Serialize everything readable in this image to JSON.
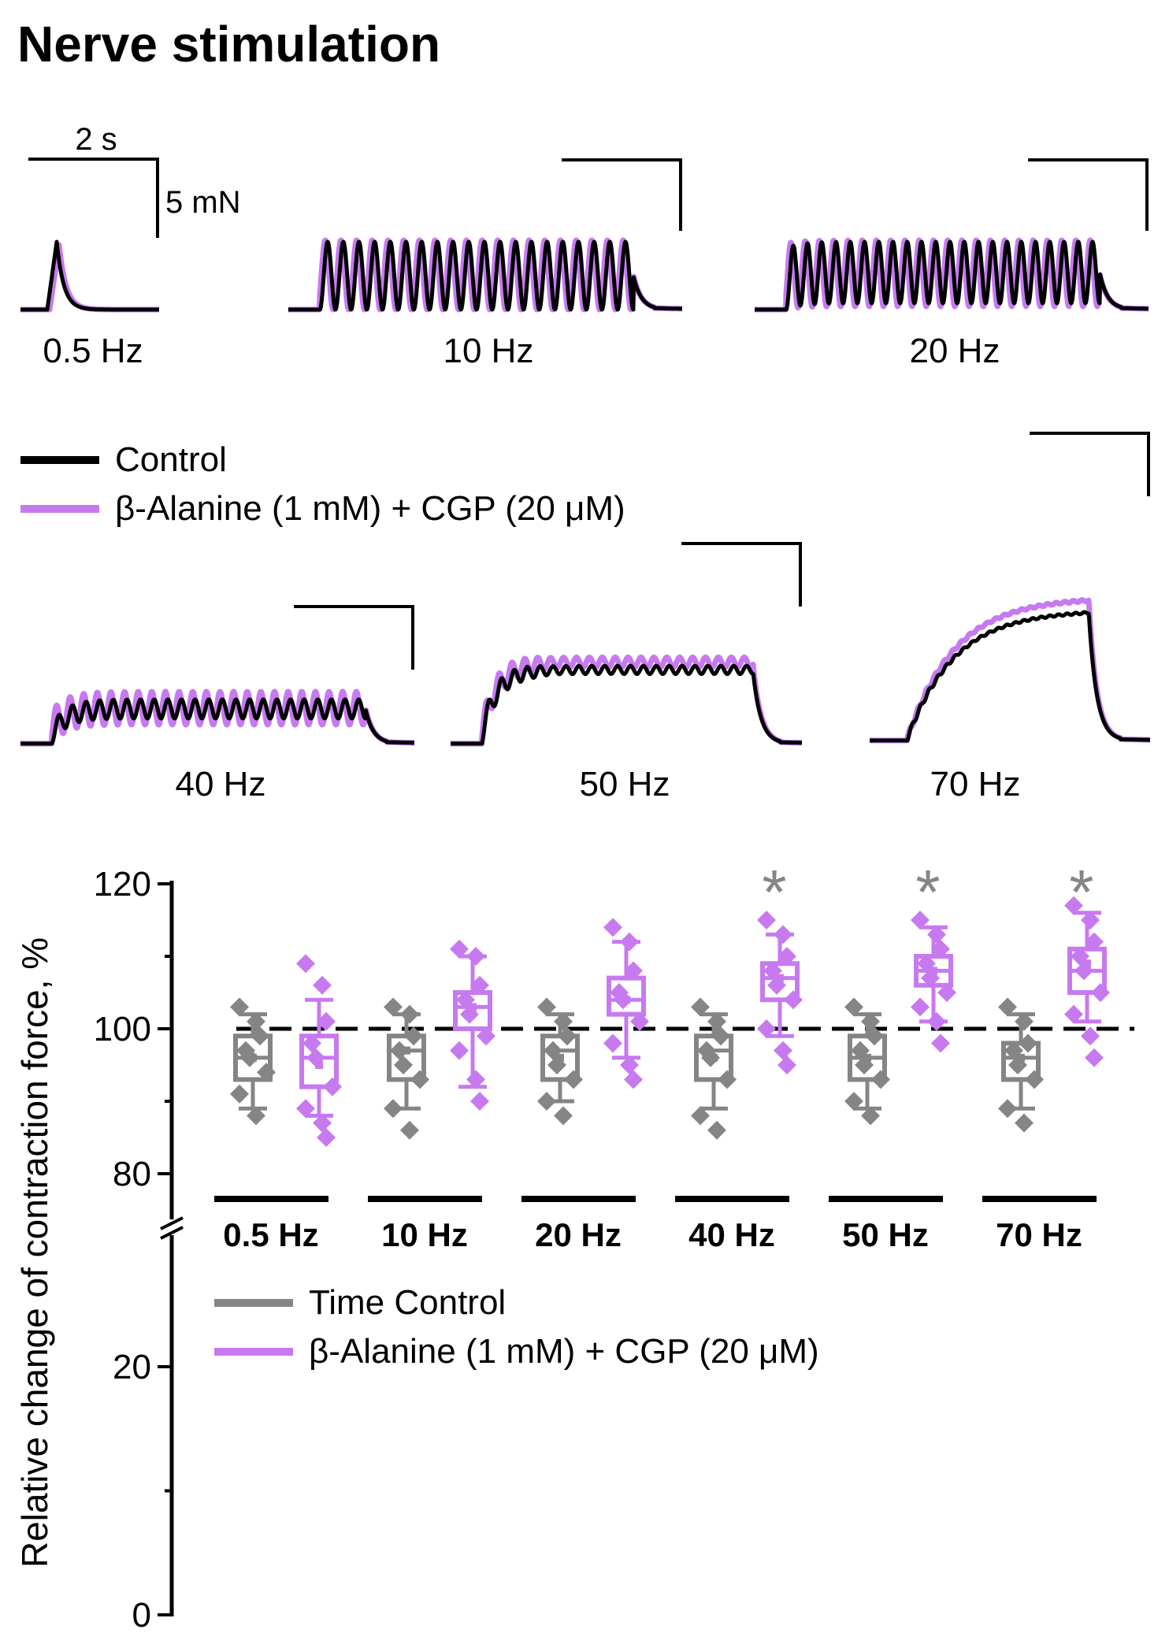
{
  "panel_title": "Nerve stimulation",
  "colors": {
    "control": "#000000",
    "treatment": "#c77af0",
    "time_control": "#858585"
  },
  "traces": {
    "scale_time": "2 s",
    "scale_force": "5 mN",
    "legend": {
      "control": "Control",
      "treatment": "β-Alanine (1 mM) + CGP (20 μM)"
    },
    "panels": [
      {
        "label": "0.5 Hz",
        "freq": 0.5,
        "control_peak_mN": 4.3,
        "treatment_peak_mN": 4.1,
        "control_plateau_mN": 0,
        "treatment_plateau_mN": 0
      },
      {
        "label": "10 Hz",
        "freq": 10,
        "control_peak_mN": 4.3,
        "treatment_peak_mN": 4.4,
        "control_plateau_mN": 0,
        "treatment_plateau_mN": 0
      },
      {
        "label": "20 Hz",
        "freq": 20,
        "control_peak_mN": 4.3,
        "treatment_peak_mN": 4.4,
        "control_plateau_mN": 0.4,
        "treatment_plateau_mN": 0.2
      },
      {
        "label": "40 Hz",
        "freq": 40,
        "control_peak_mN": 2.8,
        "treatment_peak_mN": 3.3,
        "control_plateau_mN": 1.6,
        "treatment_plateau_mN": 1.2
      },
      {
        "label": "50 Hz",
        "freq": 50,
        "control_peak_mN": 5.2,
        "treatment_peak_mN": 5.8,
        "control_plateau_mN": 3.9,
        "treatment_plateau_mN": 4.2
      },
      {
        "label": "70 Hz",
        "freq": 70,
        "control_peak_mN": 8.4,
        "treatment_peak_mN": 9.2,
        "control_plateau_mN": 8.1,
        "treatment_plateau_mN": 8.9
      }
    ]
  },
  "chart_data": {
    "type": "box",
    "title": "",
    "ylabel": "Relative change of contraction force, %",
    "xlabel": "",
    "ylim": [
      0,
      120
    ],
    "y_axis_break": [
      25,
      75
    ],
    "yticks": [
      0,
      20,
      80,
      100,
      120
    ],
    "reference_line": 100,
    "categories": [
      "0.5 Hz",
      "10 Hz",
      "20 Hz",
      "40 Hz",
      "50 Hz",
      "70 Hz"
    ],
    "significance": [
      "",
      "",
      "",
      "*",
      "*",
      "*"
    ],
    "series": [
      {
        "name": "Time Control",
        "boxes": [
          {
            "whisker_low": 89,
            "q1": 93,
            "median": 96,
            "q3": 99,
            "whisker_high": 102,
            "mean": 96
          },
          {
            "whisker_low": 89,
            "q1": 93,
            "median": 97,
            "q3": 99,
            "whisker_high": 102,
            "mean": 97
          },
          {
            "whisker_low": 90,
            "q1": 93,
            "median": 97,
            "q3": 99,
            "whisker_high": 102,
            "mean": 96
          },
          {
            "whisker_low": 89,
            "q1": 93,
            "median": 97,
            "q3": 99,
            "whisker_high": 102,
            "mean": 96
          },
          {
            "whisker_low": 89,
            "q1": 93,
            "median": 96,
            "q3": 99,
            "whisker_high": 102,
            "mean": 96
          },
          {
            "whisker_low": 89,
            "q1": 93,
            "median": 96,
            "q3": 98,
            "whisker_high": 102,
            "mean": 96
          }
        ],
        "points": [
          [
            103,
            101,
            99,
            97,
            96,
            94,
            91,
            88
          ],
          [
            103,
            102,
            99,
            97,
            95,
            93,
            89,
            86
          ],
          [
            103,
            101,
            99,
            97,
            95,
            93,
            90,
            88
          ],
          [
            103,
            101,
            99,
            97,
            96,
            93,
            88,
            86
          ],
          [
            103,
            101,
            99,
            97,
            95,
            93,
            90,
            88
          ],
          [
            103,
            101,
            98,
            97,
            95,
            93,
            89,
            87
          ]
        ]
      },
      {
        "name": "β-Alanine (1 mM) + CGP (20 μM)",
        "boxes": [
          {
            "whisker_low": 88,
            "q1": 92,
            "median": 96,
            "q3": 99,
            "whisker_high": 104,
            "mean": 95
          },
          {
            "whisker_low": 92,
            "q1": 100,
            "median": 103,
            "q3": 105,
            "whisker_high": 110,
            "mean": 103
          },
          {
            "whisker_low": 96,
            "q1": 102,
            "median": 104,
            "q3": 107,
            "whisker_high": 112,
            "mean": 104
          },
          {
            "whisker_low": 99,
            "q1": 104,
            "median": 107,
            "q3": 109,
            "whisker_high": 113,
            "mean": 107
          },
          {
            "whisker_low": 101,
            "q1": 106,
            "median": 108,
            "q3": 110,
            "whisker_high": 114,
            "mean": 108
          },
          {
            "whisker_low": 101,
            "q1": 105,
            "median": 108,
            "q3": 111,
            "whisker_high": 116,
            "mean": 109
          }
        ],
        "points": [
          [
            109,
            106,
            101,
            98,
            96,
            92,
            89,
            87,
            85
          ],
          [
            111,
            110,
            106,
            104,
            102,
            99,
            97,
            93,
            90
          ],
          [
            114,
            112,
            108,
            105,
            104,
            101,
            98,
            95,
            93
          ],
          [
            115,
            113,
            110,
            108,
            106,
            104,
            100,
            97,
            95
          ],
          [
            115,
            113,
            111,
            109,
            107,
            105,
            103,
            101,
            98
          ],
          [
            117,
            115,
            112,
            110,
            108,
            105,
            102,
            99,
            96
          ]
        ]
      }
    ]
  }
}
